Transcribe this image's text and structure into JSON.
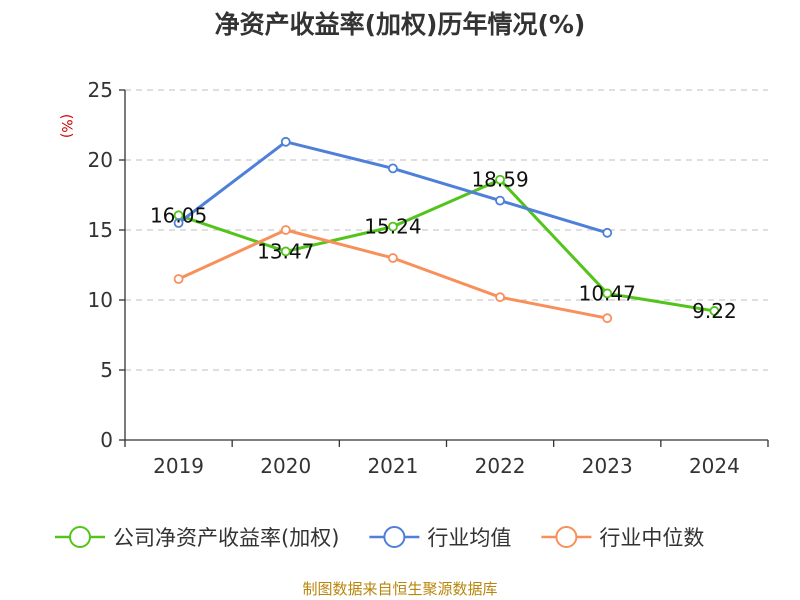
{
  "chart_data": {
    "type": "line",
    "title": "净资产收益率(加权)历年情况(%)",
    "ylabel": "(%)",
    "categories": [
      "2019",
      "2020",
      "2021",
      "2022",
      "2023",
      "2024"
    ],
    "ylim": [
      0,
      25
    ],
    "yticks": [
      0,
      5,
      10,
      15,
      20,
      25
    ],
    "grid": true,
    "legend_position": "bottom",
    "series": [
      {
        "name": "公司净资产收益率(加权)",
        "color": "#52c41a",
        "values": [
          16.05,
          13.47,
          15.24,
          18.59,
          10.47,
          9.22
        ],
        "labels": [
          "16.05",
          "13.47",
          "15.24",
          "18.59",
          "10.47",
          "9.22"
        ]
      },
      {
        "name": "行业均值",
        "color": "#4e7fd9",
        "values": [
          15.5,
          21.3,
          19.4,
          17.1,
          14.8,
          null
        ]
      },
      {
        "name": "行业中位数",
        "color": "#f7905a",
        "values": [
          11.5,
          15.0,
          13.0,
          10.2,
          8.7,
          null
        ]
      }
    ]
  },
  "footer": {
    "source": "制图数据来自恒生聚源数据库"
  }
}
